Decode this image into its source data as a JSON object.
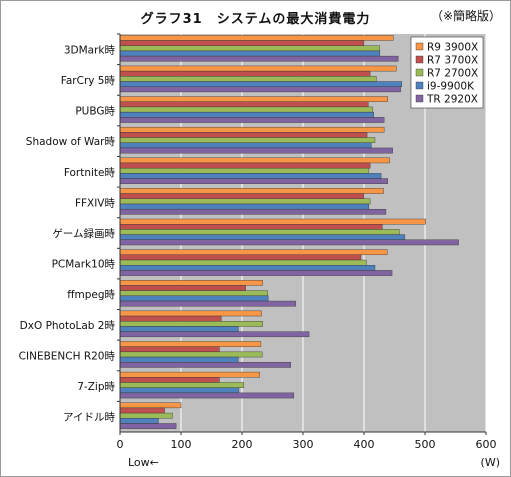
{
  "chart_data": {
    "type": "bar",
    "orientation": "horizontal",
    "title": "グラフ31　システムの最大消費電力",
    "note": "（※簡略版）",
    "x_unit": "(W)",
    "x_hint": "Low←",
    "xlim": [
      0,
      600
    ],
    "x_ticks": [
      0,
      100,
      200,
      300,
      400,
      500,
      600
    ],
    "grid": true,
    "legend_position": "top-right",
    "categories": [
      "3DMark時",
      "FarCry 5時",
      "PUBG時",
      "Shadow of War時",
      "Fortnite時",
      "FFXIV時",
      "ゲーム録画時",
      "PCMark10時",
      "ffmpeg時",
      "DxO PhotoLab 2時",
      "CINEBENCH R20時",
      "7-Zip時",
      "アイドル時"
    ],
    "series": [
      {
        "name": "R9 3900X",
        "color": "#f79646",
        "values": [
          448,
          453,
          439,
          433,
          442,
          432,
          501,
          438,
          234,
          232,
          231,
          229,
          100
        ]
      },
      {
        "name": "R7 3700X",
        "color": "#c0504d",
        "values": [
          400,
          410,
          407,
          405,
          410,
          400,
          430,
          395,
          206,
          166,
          163,
          163,
          73
        ]
      },
      {
        "name": "R7 2700X",
        "color": "#9bbb59",
        "values": [
          426,
          420,
          414,
          418,
          408,
          410,
          458,
          404,
          242,
          234,
          233,
          203,
          86
        ]
      },
      {
        "name": "i9-9900K",
        "color": "#4f81bd",
        "values": [
          426,
          462,
          416,
          412,
          428,
          408,
          467,
          418,
          243,
          194,
          194,
          195,
          63
        ]
      },
      {
        "name": "TR 2920X",
        "color": "#8064a2",
        "values": [
          456,
          460,
          433,
          447,
          439,
          436,
          555,
          446,
          288,
          310,
          280,
          285,
          92
        ]
      }
    ]
  }
}
